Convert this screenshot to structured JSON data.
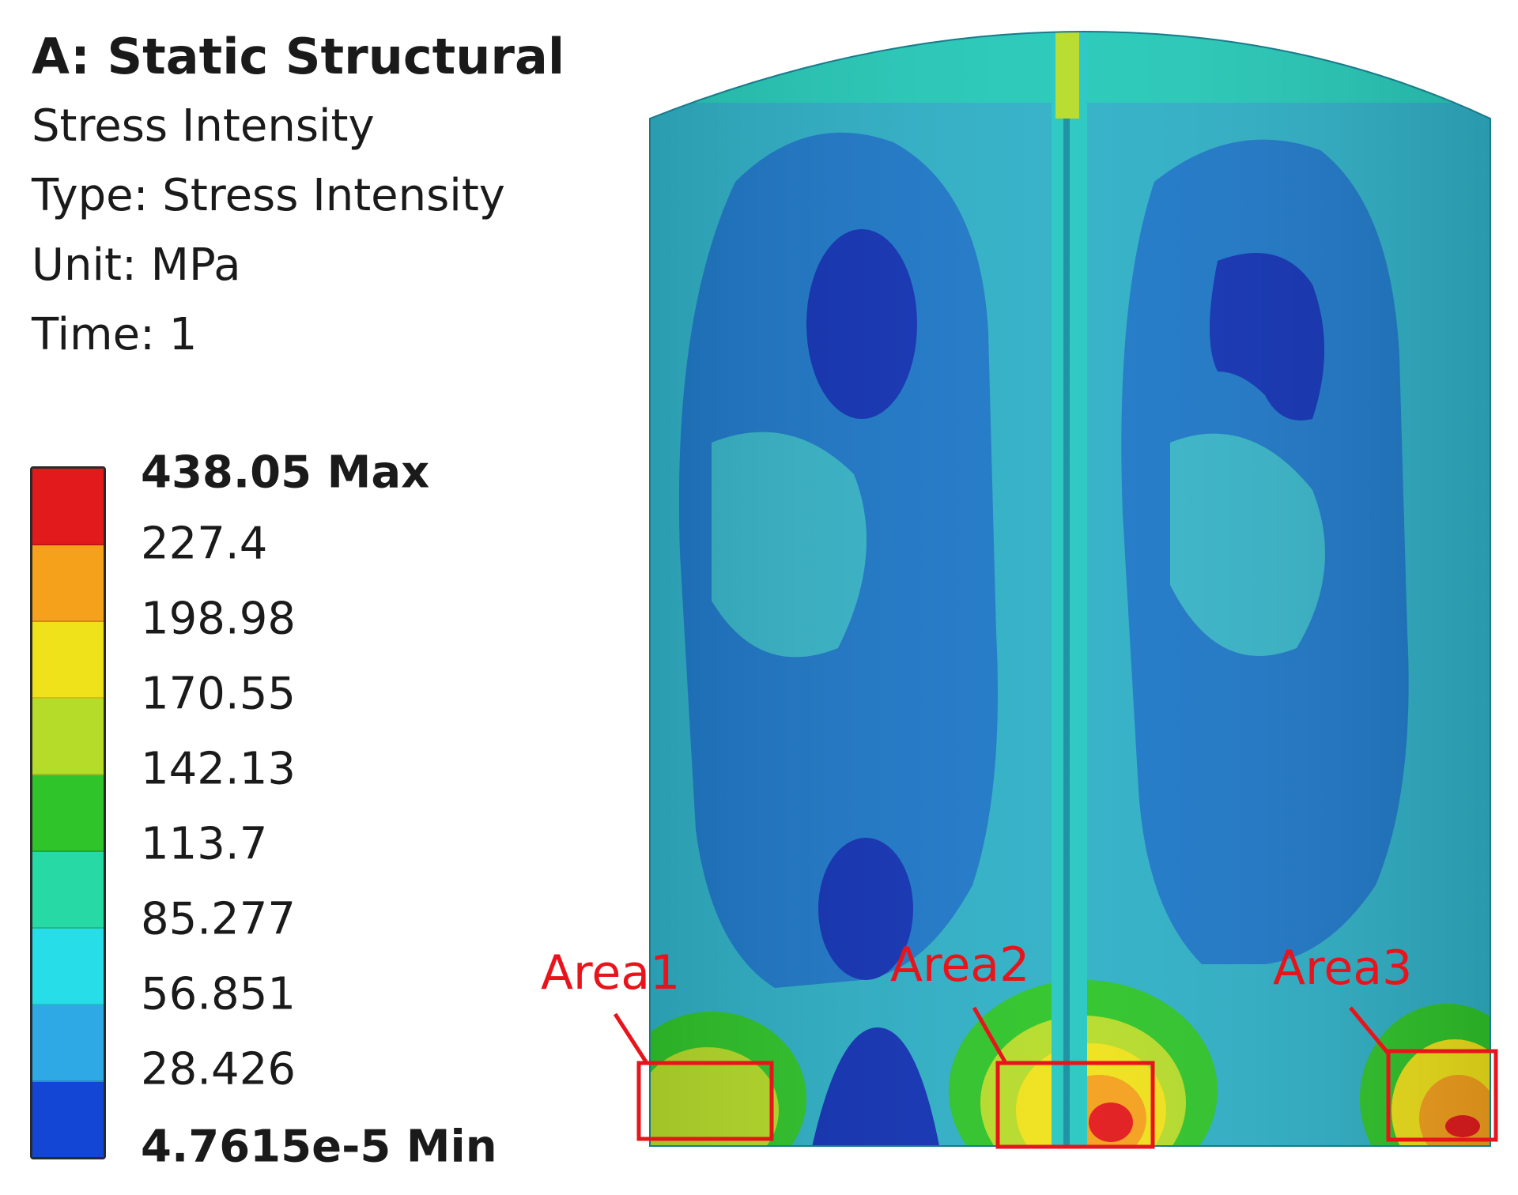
{
  "header": {
    "title": "A: Static Structural",
    "result_name": "Stress Intensity",
    "type": "Type: Stress Intensity",
    "unit": "Unit: MPa",
    "time": "Time: 1"
  },
  "legend": {
    "labels": [
      "438.05 Max",
      "227.4",
      "198.98",
      "170.55",
      "142.13",
      "113.7",
      "85.277",
      "56.851",
      "28.426",
      "4.7615e-5 Min"
    ],
    "colors": [
      "#e31a1c",
      "#f5a11c",
      "#f0e21a",
      "#b6dc2a",
      "#2fc42a",
      "#26d9a5",
      "#27dde8",
      "#2fa8e6",
      "#1446d6"
    ]
  },
  "annotations": [
    "Area1",
    "Area2",
    "Area3"
  ],
  "colors": {
    "annotation": "#e8141c",
    "body_base": "#2fb0c6",
    "blue_zone": "#1e78c8",
    "dark_blue": "#1232b4"
  }
}
